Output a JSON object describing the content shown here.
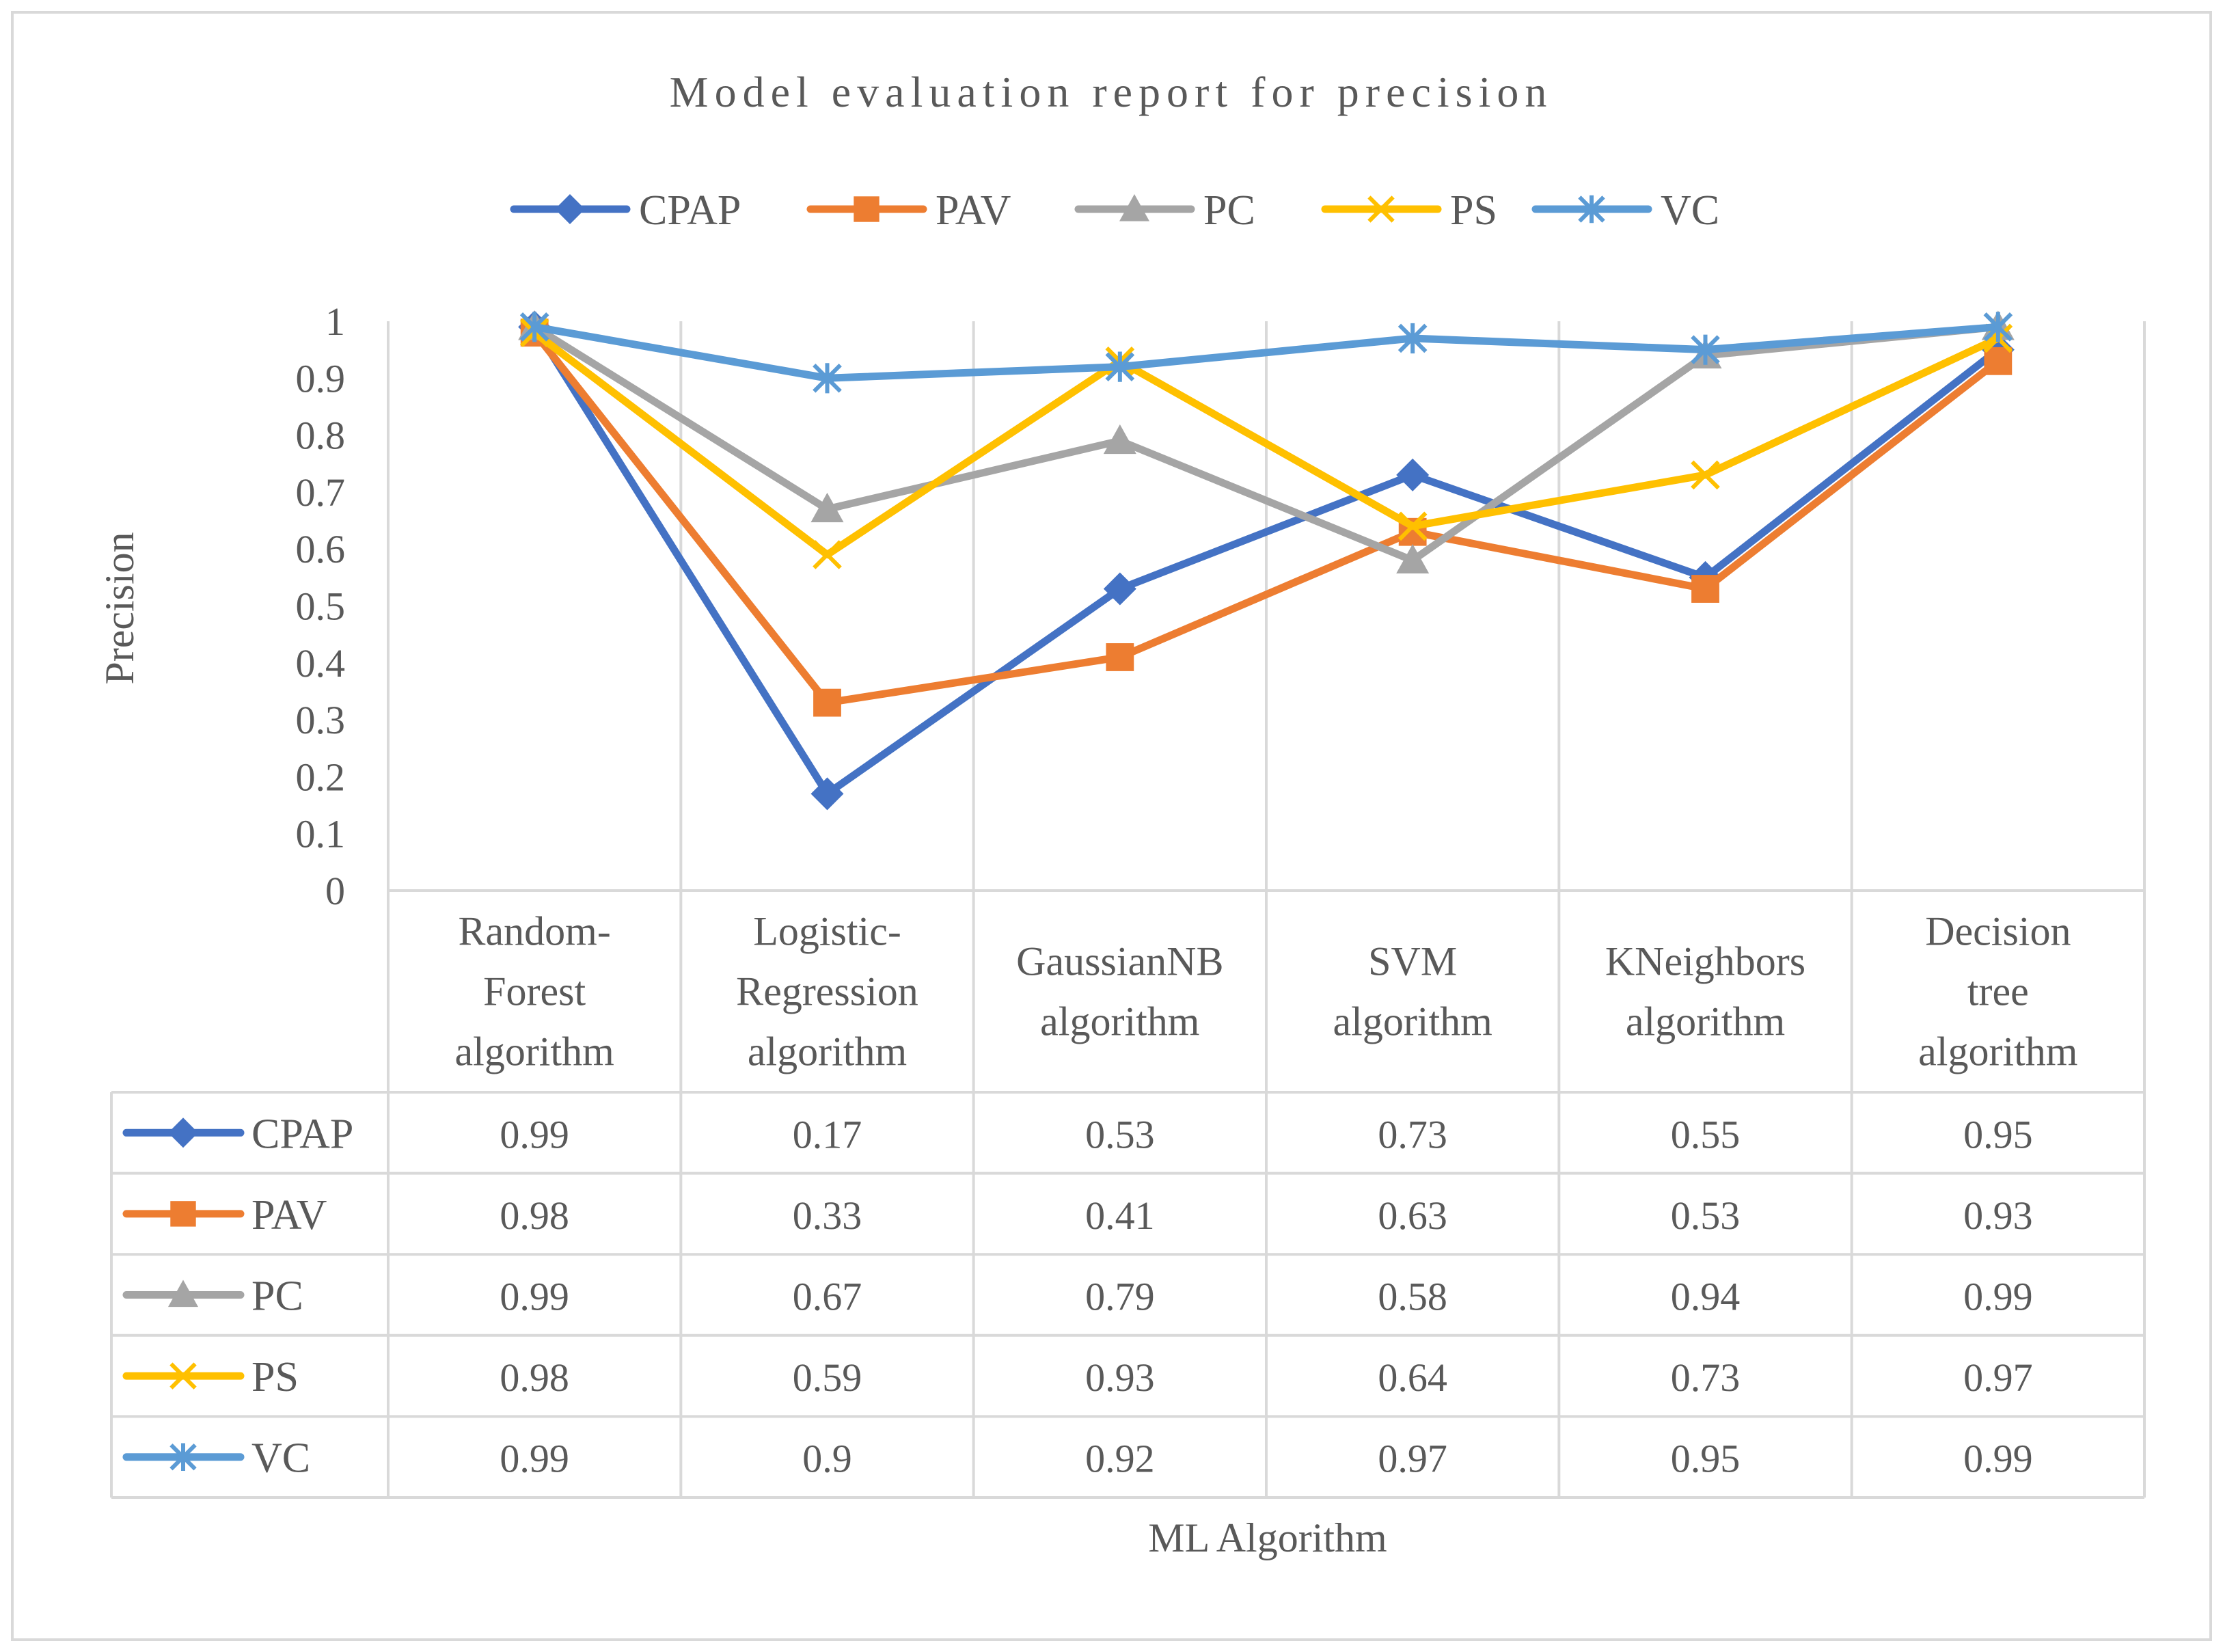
{
  "chart_data": {
    "type": "line",
    "title": "Model evaluation report for precision",
    "xlabel": "ML Algorithm",
    "ylabel": "Precision",
    "ylim": [
      0,
      1
    ],
    "yticks": [
      "0",
      "0.1",
      "0.2",
      "0.3",
      "0.4",
      "0.5",
      "0.6",
      "0.7",
      "0.8",
      "0.9",
      "1"
    ],
    "legend_position": "top",
    "data_table": true,
    "categories": [
      [
        "Random-",
        "Forest",
        "algorithm"
      ],
      [
        "Logistic-",
        "Regression",
        "algorithm"
      ],
      [
        "GaussianNB",
        "algorithm"
      ],
      [
        "SVM",
        "algorithm"
      ],
      [
        "KNeighbors",
        "algorithm"
      ],
      [
        "Decision",
        "tree",
        "algorithm"
      ]
    ],
    "series": [
      {
        "name": "CPAP",
        "color": "#4472C4",
        "marker": "diamond",
        "values": [
          0.99,
          0.17,
          0.53,
          0.73,
          0.55,
          0.95
        ],
        "labels": [
          "0.99",
          "0.17",
          "0.53",
          "0.73",
          "0.55",
          "0.95"
        ]
      },
      {
        "name": "PAV",
        "color": "#ED7D31",
        "marker": "square",
        "values": [
          0.98,
          0.33,
          0.41,
          0.63,
          0.53,
          0.93
        ],
        "labels": [
          "0.98",
          "0.33",
          "0.41",
          "0.63",
          "0.53",
          "0.93"
        ]
      },
      {
        "name": "PC",
        "color": "#A5A5A5",
        "marker": "triangle",
        "values": [
          0.99,
          0.67,
          0.79,
          0.58,
          0.94,
          0.99
        ],
        "labels": [
          "0.99",
          "0.67",
          "0.79",
          "0.58",
          "0.94",
          "0.99"
        ]
      },
      {
        "name": "PS",
        "color": "#FFC000",
        "marker": "x",
        "values": [
          0.98,
          0.59,
          0.93,
          0.64,
          0.73,
          0.97
        ],
        "labels": [
          "0.98",
          "0.59",
          "0.93",
          "0.64",
          "0.73",
          "0.97"
        ]
      },
      {
        "name": "VC",
        "color": "#5B9BD5",
        "marker": "star",
        "values": [
          0.99,
          0.9,
          0.92,
          0.97,
          0.95,
          0.99
        ],
        "labels": [
          "0.99",
          "0.9",
          "0.92",
          "0.97",
          "0.95",
          "0.99"
        ]
      }
    ]
  }
}
